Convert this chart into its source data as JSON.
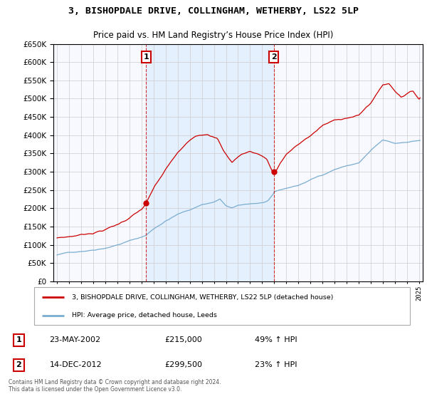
{
  "title": "3, BISHOPDALE DRIVE, COLLINGHAM, WETHERBY, LS22 5LP",
  "subtitle": "Price paid vs. HM Land Registry’s House Price Index (HPI)",
  "legend_line1": "3, BISHOPDALE DRIVE, COLLINGHAM, WETHERBY, LS22 5LP (detached house)",
  "legend_line2": "HPI: Average price, detached house, Leeds",
  "sale1_label": "1",
  "sale1_date": "23-MAY-2002",
  "sale1_price": "£215,000",
  "sale1_hpi": "49% ↑ HPI",
  "sale1_year": 2002.38,
  "sale1_value": 215000,
  "sale2_label": "2",
  "sale2_date": "14-DEC-2012",
  "sale2_price": "£299,500",
  "sale2_hpi": "23% ↑ HPI",
  "sale2_year": 2012.96,
  "sale2_value": 299500,
  "copyright_text": "Contains HM Land Registry data © Crown copyright and database right 2024.\nThis data is licensed under the Open Government Licence v3.0.",
  "line_color_red": "#cc0000",
  "line_color_blue": "#7aadcf",
  "shade_color": "#ddeeff",
  "background_color": "#ffffff",
  "grid_color": "#cccccc",
  "ylim": [
    0,
    650000
  ],
  "xlim_start": 1994.7,
  "xlim_end": 2025.3
}
